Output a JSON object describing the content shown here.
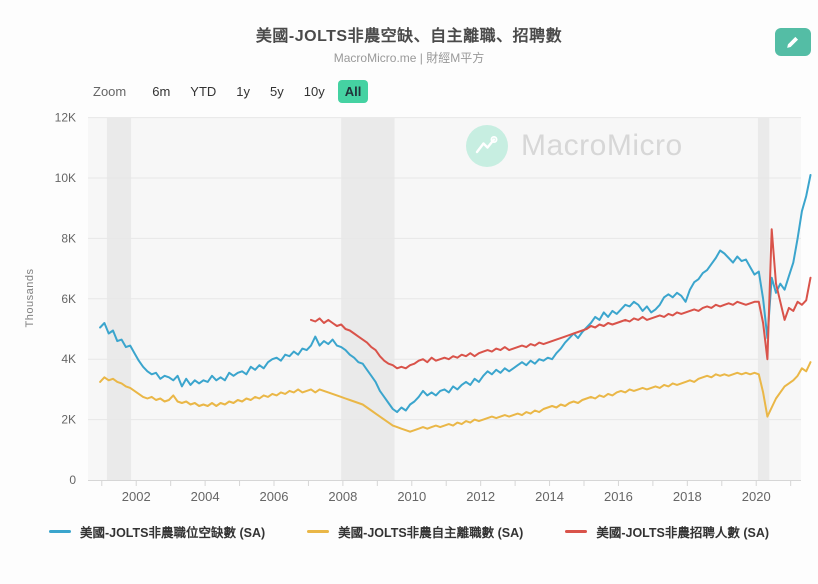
{
  "header": {
    "title": "美國-JOLTS非農空缺、自主離職、招聘數",
    "subtitle": "MacroMicro.me | 財經M平方",
    "edit_button": {
      "icon": "pencil-icon",
      "color": "#54bda5"
    }
  },
  "toolbar": {
    "zoom_label": "Zoom",
    "ranges": [
      "6m",
      "YTD",
      "1y",
      "5y",
      "10y",
      "All"
    ],
    "active_range": "All",
    "active_bg": "#45d2a2"
  },
  "watermark": {
    "icon": "macromicro-logo-icon",
    "text": "MacroMicro",
    "circle_color": "#c7eee1"
  },
  "chart_data": {
    "type": "line",
    "title": "美國-JOLTS非農空缺、自主離職、招聘數",
    "xlabel": "",
    "ylabel": "Thousands",
    "y_tick_values": [
      0,
      2,
      4,
      6,
      8,
      10,
      12
    ],
    "y_tick_labels": [
      "0",
      "2K",
      "4K",
      "6K",
      "8K",
      "10K",
      "12K"
    ],
    "x_ticks": [
      2002,
      2004,
      2006,
      2008,
      2010,
      2012,
      2014,
      2016,
      2018,
      2020
    ],
    "x_range": [
      2000.6,
      2021.3
    ],
    "y_range": [
      0,
      12
    ],
    "grid": true,
    "legend_position": "bottom",
    "recession_bands": [
      [
        2001.15,
        2001.85
      ],
      [
        2007.95,
        2009.5
      ],
      [
        2020.05,
        2020.38
      ]
    ],
    "band_color": "#eaeaea",
    "plot_bg": "#f7f7f7",
    "series": [
      {
        "id": "job-openings",
        "name": "美國-JOLTS非農職位空缺數 (SA)",
        "color": "#3ba5cd",
        "start": 2000.95,
        "step": 0.125,
        "values": [
          5.05,
          5.2,
          4.85,
          4.95,
          4.6,
          4.65,
          4.4,
          4.45,
          4.2,
          3.95,
          3.75,
          3.6,
          3.5,
          3.55,
          3.35,
          3.45,
          3.4,
          3.3,
          3.45,
          3.1,
          3.35,
          3.15,
          3.3,
          3.2,
          3.3,
          3.25,
          3.45,
          3.3,
          3.4,
          3.3,
          3.55,
          3.45,
          3.55,
          3.6,
          3.5,
          3.75,
          3.65,
          3.8,
          3.7,
          3.9,
          4.0,
          4.05,
          3.95,
          4.15,
          4.1,
          4.25,
          4.15,
          4.35,
          4.3,
          4.45,
          4.75,
          4.45,
          4.6,
          4.5,
          4.65,
          4.45,
          4.4,
          4.3,
          4.15,
          4.05,
          3.9,
          3.85,
          3.65,
          3.45,
          3.25,
          2.95,
          2.75,
          2.55,
          2.35,
          2.25,
          2.4,
          2.3,
          2.5,
          2.6,
          2.75,
          2.95,
          2.8,
          2.9,
          2.8,
          2.95,
          3.0,
          2.9,
          3.1,
          3.0,
          3.15,
          3.25,
          3.15,
          3.35,
          3.25,
          3.45,
          3.6,
          3.5,
          3.65,
          3.55,
          3.7,
          3.6,
          3.7,
          3.8,
          3.9,
          3.8,
          3.95,
          3.85,
          4.0,
          3.95,
          4.05,
          4.0,
          4.2,
          4.35,
          4.55,
          4.7,
          4.85,
          4.7,
          4.9,
          5.05,
          5.2,
          5.4,
          5.3,
          5.55,
          5.4,
          5.6,
          5.5,
          5.65,
          5.8,
          5.75,
          5.9,
          5.8,
          5.6,
          5.75,
          5.55,
          5.65,
          5.8,
          6.05,
          6.15,
          6.05,
          6.2,
          6.1,
          5.9,
          6.3,
          6.55,
          6.65,
          6.85,
          6.95,
          7.15,
          7.35,
          7.6,
          7.5,
          7.35,
          7.2,
          7.4,
          7.25,
          7.3,
          7.05,
          6.8,
          6.9,
          6.0,
          4.7,
          6.7,
          6.2,
          6.5,
          6.3,
          6.75,
          7.2,
          8.0,
          8.9,
          9.4,
          10.1
        ]
      },
      {
        "id": "quits",
        "name": "美國-JOLTS非農自主離職數 (SA)",
        "color": "#eab747",
        "start": 2000.95,
        "step": 0.125,
        "values": [
          3.25,
          3.4,
          3.3,
          3.35,
          3.25,
          3.2,
          3.1,
          3.05,
          2.95,
          2.85,
          2.75,
          2.7,
          2.75,
          2.65,
          2.7,
          2.6,
          2.65,
          2.8,
          2.6,
          2.55,
          2.6,
          2.5,
          2.55,
          2.45,
          2.5,
          2.45,
          2.55,
          2.45,
          2.55,
          2.5,
          2.6,
          2.55,
          2.65,
          2.6,
          2.7,
          2.65,
          2.75,
          2.7,
          2.8,
          2.75,
          2.85,
          2.8,
          2.9,
          2.85,
          2.95,
          2.9,
          3.0,
          2.9,
          2.95,
          3.0,
          2.9,
          3.0,
          2.95,
          2.9,
          2.85,
          2.8,
          2.75,
          2.7,
          2.65,
          2.6,
          2.55,
          2.5,
          2.4,
          2.3,
          2.2,
          2.1,
          2.0,
          1.9,
          1.8,
          1.75,
          1.7,
          1.65,
          1.6,
          1.65,
          1.7,
          1.75,
          1.7,
          1.75,
          1.8,
          1.75,
          1.8,
          1.85,
          1.8,
          1.9,
          1.85,
          1.95,
          1.9,
          2.0,
          1.95,
          2.0,
          2.05,
          2.1,
          2.05,
          2.1,
          2.15,
          2.1,
          2.15,
          2.2,
          2.15,
          2.25,
          2.2,
          2.3,
          2.25,
          2.35,
          2.4,
          2.45,
          2.4,
          2.5,
          2.45,
          2.55,
          2.6,
          2.55,
          2.65,
          2.7,
          2.75,
          2.7,
          2.8,
          2.75,
          2.85,
          2.8,
          2.9,
          2.95,
          2.9,
          3.0,
          2.95,
          3.0,
          3.05,
          3.0,
          3.05,
          3.1,
          3.05,
          3.15,
          3.1,
          3.2,
          3.15,
          3.2,
          3.25,
          3.3,
          3.25,
          3.35,
          3.4,
          3.45,
          3.4,
          3.5,
          3.45,
          3.5,
          3.45,
          3.5,
          3.55,
          3.5,
          3.55,
          3.5,
          3.55,
          3.5,
          2.9,
          2.1,
          2.4,
          2.7,
          2.9,
          3.1,
          3.2,
          3.3,
          3.45,
          3.7,
          3.6,
          3.9
        ]
      },
      {
        "id": "hires",
        "name": "美國-JOLTS非農招聘人數 (SA)",
        "color": "#d9534a",
        "start": 2007.075,
        "step": 0.125,
        "values": [
          5.3,
          5.25,
          5.35,
          5.2,
          5.3,
          5.2,
          5.1,
          5.15,
          5.0,
          4.95,
          4.85,
          4.75,
          4.65,
          4.55,
          4.4,
          4.3,
          4.1,
          3.95,
          3.85,
          3.8,
          3.7,
          3.75,
          3.7,
          3.8,
          3.85,
          3.95,
          4.0,
          3.9,
          4.05,
          3.95,
          4.0,
          4.05,
          4.0,
          4.1,
          4.05,
          4.15,
          4.1,
          4.2,
          4.1,
          4.2,
          4.25,
          4.3,
          4.25,
          4.35,
          4.3,
          4.4,
          4.3,
          4.35,
          4.4,
          4.45,
          4.4,
          4.5,
          4.45,
          4.55,
          4.5,
          4.55,
          4.6,
          4.65,
          4.7,
          4.75,
          4.8,
          4.85,
          4.9,
          4.95,
          5.0,
          5.1,
          5.05,
          5.15,
          5.1,
          5.2,
          5.15,
          5.2,
          5.25,
          5.3,
          5.25,
          5.35,
          5.3,
          5.4,
          5.3,
          5.35,
          5.4,
          5.45,
          5.4,
          5.5,
          5.45,
          5.55,
          5.5,
          5.55,
          5.6,
          5.65,
          5.6,
          5.7,
          5.75,
          5.7,
          5.8,
          5.75,
          5.8,
          5.85,
          5.8,
          5.9,
          5.85,
          5.8,
          5.85,
          5.9,
          5.9,
          5.2,
          4.0,
          8.3,
          6.5,
          5.9,
          5.3,
          5.7,
          5.6,
          5.9,
          5.8,
          5.95,
          6.7
        ]
      }
    ]
  }
}
